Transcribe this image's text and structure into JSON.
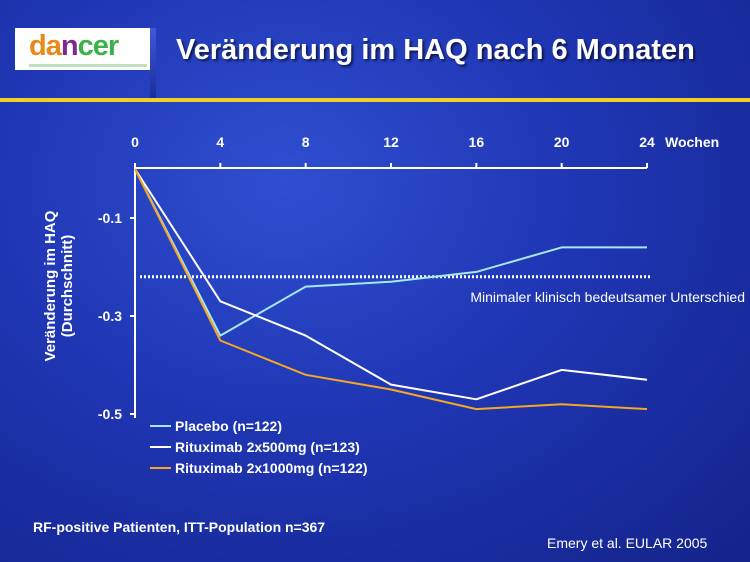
{
  "header": {
    "logo_parts": [
      {
        "text": "da",
        "color": "#e8891a"
      },
      {
        "text": "n",
        "color": "#7d2a90"
      },
      {
        "text": "cer",
        "color": "#3bb14a"
      }
    ],
    "title": "Veränderung im HAQ nach 6 Monaten"
  },
  "colors": {
    "rule": "#f0d020",
    "placebo": "#a6e8f4",
    "ritux500": "#ffffff",
    "ritux1000": "#f5a623",
    "threshold": "#ffffff"
  },
  "chart_data": {
    "type": "line",
    "x": [
      0,
      4,
      8,
      12,
      16,
      20,
      24
    ],
    "x_ticks": [
      "0",
      "4",
      "8",
      "12",
      "16",
      "20",
      "24"
    ],
    "x_unit": "Wochen",
    "xlim": [
      0,
      24
    ],
    "ylabel": [
      "Veränderung im HAQ",
      "(Durchschnitt)"
    ],
    "y_ticks": [
      -0.1,
      -0.3,
      -0.5
    ],
    "ylim": [
      -0.5,
      0.0
    ],
    "axis_position": "top",
    "grid": false,
    "legend_position": "bottom-left",
    "threshold": {
      "value": -0.22,
      "label": "Minimaler klinisch bedeutsamer Unterschied"
    },
    "series": [
      {
        "name": "Placebo (n=122)",
        "color": "#a6e8f4",
        "values": [
          0,
          -0.34,
          -0.24,
          -0.23,
          -0.21,
          -0.16,
          -0.16
        ]
      },
      {
        "name": "Rituximab 2x500mg (n=123)",
        "color": "#ffffff",
        "values": [
          0,
          -0.27,
          -0.34,
          -0.44,
          -0.47,
          -0.41,
          -0.43
        ]
      },
      {
        "name": "Rituximab 2x1000mg (n=122)",
        "color": "#f5a623",
        "values": [
          0,
          -0.35,
          -0.42,
          -0.45,
          -0.49,
          -0.48,
          -0.49
        ]
      }
    ]
  },
  "footer": {
    "population": "RF-positive Patienten, ITT-Population n=367",
    "source": "Emery et al. EULAR 2005"
  }
}
